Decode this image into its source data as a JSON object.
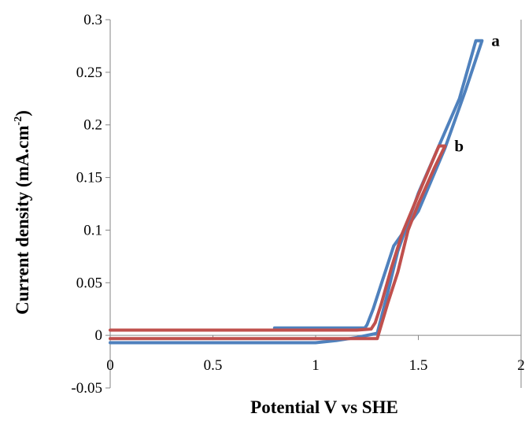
{
  "chart_data": {
    "type": "line",
    "title": "",
    "xlabel": "Potential V vs SHE",
    "ylabel_main": "Current density (mA.cm",
    "ylabel_sup": "-2",
    "ylabel_end": ")",
    "xlim": [
      0,
      2
    ],
    "ylim": [
      -0.05,
      0.3
    ],
    "x_ticks": [
      0,
      0.5,
      1,
      1.5,
      2
    ],
    "x_tick_labels": [
      "0",
      "0.5",
      "1",
      "1.5",
      "2"
    ],
    "y_ticks": [
      -0.05,
      0,
      0.05,
      0.1,
      0.15,
      0.2,
      0.25,
      0.3
    ],
    "y_tick_labels": [
      "-0.05",
      "0",
      "0.05",
      "0.1",
      "0.15",
      "0.2",
      "0.25",
      "0.3"
    ],
    "grid": false,
    "legend": "none",
    "series": [
      {
        "name": "a",
        "color": "#4F81BD",
        "points": [
          [
            0,
            -0.007
          ],
          [
            1.0,
            -0.007
          ],
          [
            1.1,
            -0.005
          ],
          [
            1.2,
            -0.002
          ],
          [
            1.3,
            0.002
          ],
          [
            1.35,
            0.04
          ],
          [
            1.4,
            0.08
          ],
          [
            1.5,
            0.135
          ],
          [
            1.6,
            0.18
          ],
          [
            1.7,
            0.225
          ],
          [
            1.78,
            0.28
          ],
          [
            1.81,
            0.28
          ],
          [
            1.73,
            0.233
          ],
          [
            1.63,
            0.178
          ],
          [
            1.5,
            0.118
          ],
          [
            1.38,
            0.085
          ],
          [
            1.33,
            0.055
          ],
          [
            1.28,
            0.025
          ],
          [
            1.25,
            0.01
          ],
          [
            1.24,
            0.007
          ],
          [
            0.8,
            0.007
          ]
        ]
      },
      {
        "name": "b",
        "color": "#C0504D",
        "points": [
          [
            0,
            -0.003
          ],
          [
            1.0,
            -0.003
          ],
          [
            1.28,
            -0.003
          ],
          [
            1.3,
            -0.003
          ],
          [
            1.35,
            0.03
          ],
          [
            1.4,
            0.06
          ],
          [
            1.45,
            0.1
          ],
          [
            1.5,
            0.125
          ],
          [
            1.58,
            0.16
          ],
          [
            1.63,
            0.18
          ],
          [
            1.6,
            0.18
          ],
          [
            1.52,
            0.143
          ],
          [
            1.42,
            0.096
          ],
          [
            1.37,
            0.065
          ],
          [
            1.32,
            0.03
          ],
          [
            1.29,
            0.012
          ],
          [
            1.27,
            0.006
          ],
          [
            1.2,
            0.005
          ],
          [
            0,
            0.005
          ]
        ]
      }
    ]
  }
}
